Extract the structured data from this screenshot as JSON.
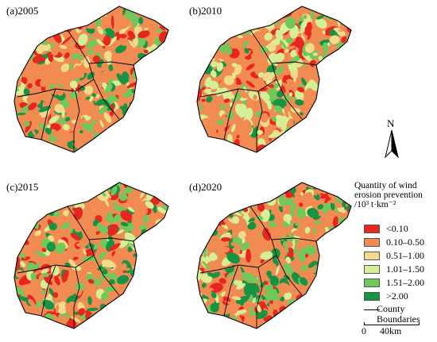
{
  "panels": [
    {
      "label": "(a)2005"
    },
    {
      "label": "(b)2010"
    },
    {
      "label": "(c)2015"
    },
    {
      "label": "(d)2020"
    }
  ],
  "legend": {
    "title_lines": [
      "Quantity of wind",
      "erosion prevention",
      "/10³ t·km⁻²"
    ],
    "classes": [
      {
        "label": "<0.10",
        "color": "#e8251e"
      },
      {
        "label": "0.10–0.50",
        "color": "#f28b52"
      },
      {
        "label": "0.51–1.00",
        "color": "#f3d98a"
      },
      {
        "label": "1.01–1.50",
        "color": "#d6ee95"
      },
      {
        "label": "1.51–2.00",
        "color": "#6fc95a"
      },
      {
        "label": ">2.00",
        "color": "#169343"
      }
    ],
    "boundary_label_lines": [
      "County",
      "Boundaries"
    ]
  },
  "north_arrow": {
    "letter": "N"
  },
  "scale_bar": {
    "start": "0",
    "end": "40km"
  }
}
